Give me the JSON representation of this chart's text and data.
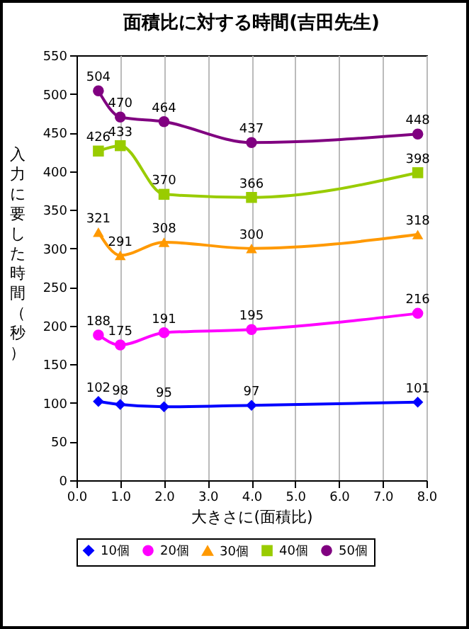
{
  "chart_data": {
    "type": "line",
    "title": "面積比に対する時間(吉田先生)",
    "xlabel": "大きさに(面積比)",
    "ylabel": "入力に要した時間（秒）",
    "x": [
      0.5,
      1.0,
      2.0,
      4.0,
      7.8
    ],
    "series": [
      {
        "name": "10個",
        "color": "#0000ff",
        "marker": "diamond",
        "values": [
          102,
          98,
          95,
          97,
          101
        ]
      },
      {
        "name": "20個",
        "color": "#ff00ff",
        "marker": "circle",
        "values": [
          188,
          175,
          191,
          195,
          216
        ]
      },
      {
        "name": "30個",
        "color": "#ff9900",
        "marker": "triangle",
        "values": [
          321,
          291,
          308,
          300,
          318
        ]
      },
      {
        "name": "40個",
        "color": "#99cc00",
        "marker": "square",
        "values": [
          426,
          433,
          370,
          366,
          398
        ]
      },
      {
        "name": "50個",
        "color": "#800080",
        "marker": "circle",
        "values": [
          504,
          470,
          464,
          437,
          448
        ]
      }
    ],
    "xlim": [
      0,
      8
    ],
    "xticks": [
      {
        "value": 0,
        "label": "0.0"
      },
      {
        "value": 1,
        "label": "1.0"
      },
      {
        "value": 2,
        "label": "2.0"
      },
      {
        "value": 3,
        "label": "3.0"
      },
      {
        "value": 4,
        "label": "4.0"
      },
      {
        "value": 5,
        "label": "5.0"
      },
      {
        "value": 6,
        "label": "6.0"
      },
      {
        "value": 7,
        "label": "7.0"
      },
      {
        "value": 8,
        "label": "8.0"
      }
    ],
    "ylim": [
      0,
      550
    ],
    "yticks": [
      0,
      50,
      100,
      150,
      200,
      250,
      300,
      350,
      400,
      450,
      500,
      550
    ],
    "grid": "x",
    "legend": "bottom",
    "data_labels": true,
    "line_style": "solid"
  }
}
